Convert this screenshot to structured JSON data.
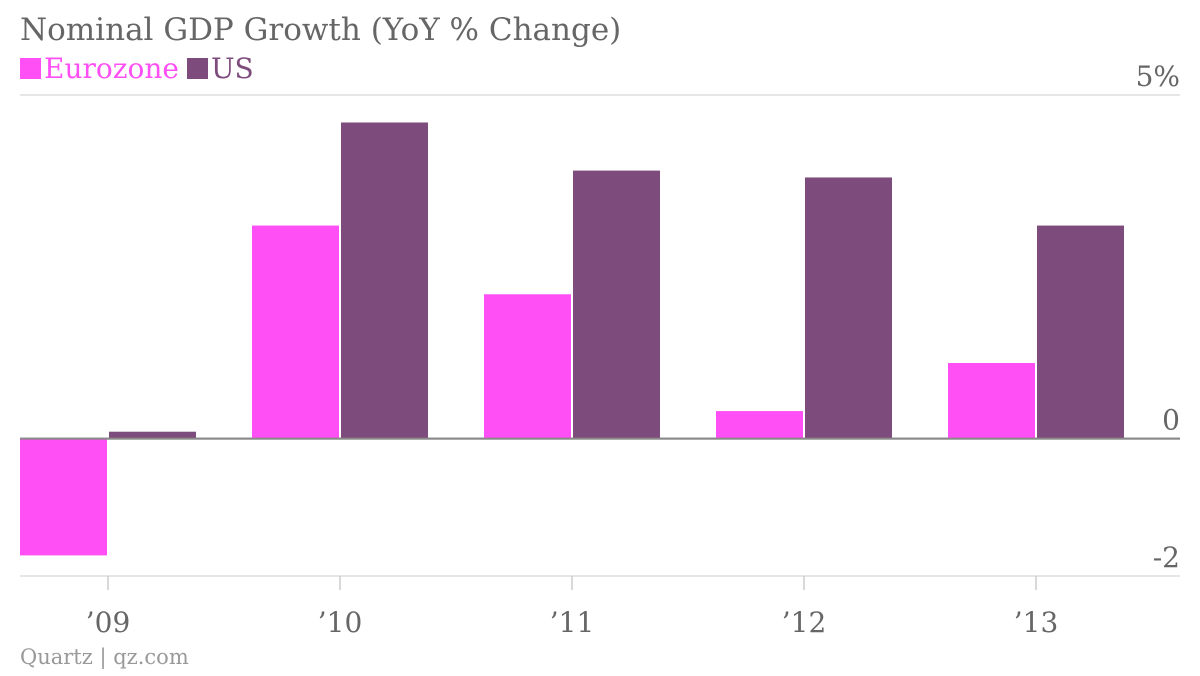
{
  "chart_data": {
    "type": "bar",
    "title": "Nominal GDP Growth (YoY % Change)",
    "categories": [
      "’09",
      "’10",
      "’11",
      "’12",
      "’13"
    ],
    "series": [
      {
        "name": "Eurozone",
        "color": "#ff4ff5",
        "values": [
          -1.7,
          3.1,
          2.1,
          0.4,
          1.1
        ]
      },
      {
        "name": "US",
        "color": "#7e4c7c",
        "values": [
          0.1,
          4.6,
          3.9,
          3.8,
          3.1
        ]
      }
    ],
    "ylim": [
      -2,
      5
    ],
    "yticks": [
      {
        "value": 5,
        "label": "5%"
      },
      {
        "value": 0,
        "label": "0"
      },
      {
        "value": -2,
        "label": "-2"
      }
    ],
    "grid": true,
    "legend_position": "top-left"
  },
  "source": "Quartz | qz.com"
}
